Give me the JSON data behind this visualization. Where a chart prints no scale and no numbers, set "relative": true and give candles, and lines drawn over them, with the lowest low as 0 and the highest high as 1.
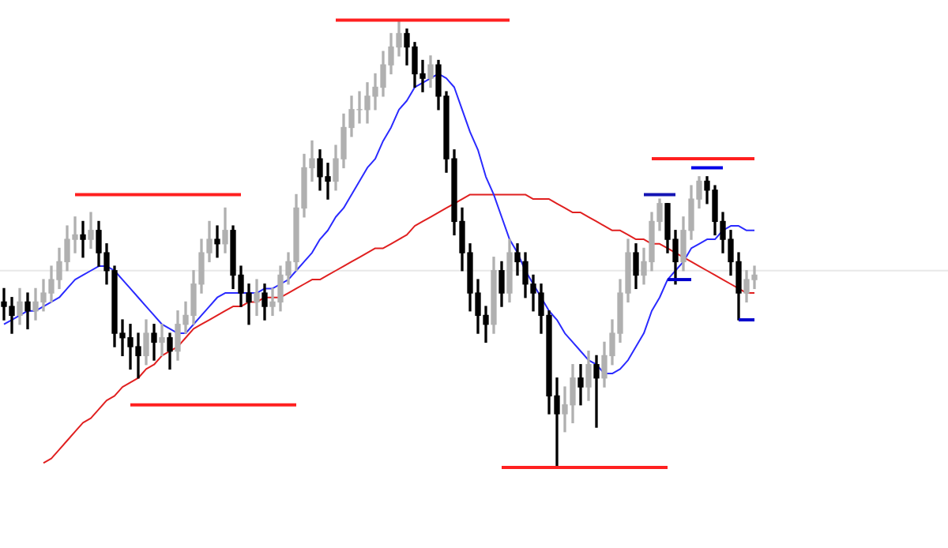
{
  "chart_data": {
    "type": "candlestick",
    "relative": true,
    "tick_labels": false,
    "categories": [
      null,
      null,
      null,
      null,
      null,
      null,
      null,
      null,
      null,
      null,
      null,
      null,
      null,
      null,
      null,
      null,
      null,
      null,
      null,
      null,
      null,
      null,
      null,
      null,
      null,
      null,
      null,
      null,
      null,
      null,
      null,
      null,
      null,
      null,
      null,
      null,
      null,
      null,
      null,
      null,
      null,
      null,
      null,
      null,
      null,
      null,
      null,
      null,
      null,
      null,
      null,
      null,
      null,
      null,
      null,
      null,
      null,
      null,
      null,
      null,
      null,
      null,
      null,
      null,
      null,
      null,
      null,
      null,
      null,
      null,
      null,
      null,
      null,
      null,
      null,
      null,
      null,
      null,
      null,
      null,
      null,
      null,
      null,
      null,
      null,
      null,
      null,
      null,
      null,
      null,
      null,
      null,
      null,
      null,
      null,
      null
    ],
    "ohlc": [
      [
        0.37,
        0.4,
        0.33,
        0.36
      ],
      [
        0.36,
        0.38,
        0.3,
        0.34
      ],
      [
        0.34,
        0.4,
        0.32,
        0.37
      ],
      [
        0.37,
        0.39,
        0.31,
        0.35
      ],
      [
        0.35,
        0.4,
        0.33,
        0.37
      ],
      [
        0.37,
        0.42,
        0.35,
        0.39
      ],
      [
        0.39,
        0.45,
        0.37,
        0.42
      ],
      [
        0.42,
        0.49,
        0.4,
        0.46
      ],
      [
        0.46,
        0.54,
        0.44,
        0.51
      ],
      [
        0.51,
        0.56,
        0.48,
        0.52
      ],
      [
        0.52,
        0.55,
        0.47,
        0.51
      ],
      [
        0.51,
        0.57,
        0.49,
        0.53
      ],
      [
        0.53,
        0.55,
        0.45,
        0.48
      ],
      [
        0.48,
        0.5,
        0.41,
        0.44
      ],
      [
        0.44,
        0.45,
        0.27,
        0.3
      ],
      [
        0.3,
        0.33,
        0.25,
        0.29
      ],
      [
        0.29,
        0.32,
        0.22,
        0.27
      ],
      [
        0.27,
        0.3,
        0.2,
        0.25
      ],
      [
        0.25,
        0.33,
        0.23,
        0.3
      ],
      [
        0.3,
        0.32,
        0.24,
        0.28
      ],
      [
        0.28,
        0.32,
        0.25,
        0.29
      ],
      [
        0.29,
        0.3,
        0.22,
        0.26
      ],
      [
        0.26,
        0.35,
        0.24,
        0.32
      ],
      [
        0.32,
        0.37,
        0.3,
        0.34
      ],
      [
        0.34,
        0.44,
        0.32,
        0.41
      ],
      [
        0.41,
        0.51,
        0.39,
        0.48
      ],
      [
        0.48,
        0.55,
        0.46,
        0.51
      ],
      [
        0.51,
        0.54,
        0.47,
        0.5
      ],
      [
        0.5,
        0.58,
        0.48,
        0.53
      ],
      [
        0.53,
        0.54,
        0.4,
        0.43
      ],
      [
        0.43,
        0.45,
        0.36,
        0.39
      ],
      [
        0.39,
        0.41,
        0.32,
        0.37
      ],
      [
        0.37,
        0.42,
        0.34,
        0.39
      ],
      [
        0.39,
        0.41,
        0.33,
        0.36
      ],
      [
        0.36,
        0.4,
        0.34,
        0.37
      ],
      [
        0.37,
        0.45,
        0.35,
        0.43
      ],
      [
        0.43,
        0.48,
        0.41,
        0.46
      ],
      [
        0.46,
        0.61,
        0.44,
        0.58
      ],
      [
        0.58,
        0.7,
        0.56,
        0.67
      ],
      [
        0.67,
        0.73,
        0.64,
        0.69
      ],
      [
        0.69,
        0.71,
        0.62,
        0.65
      ],
      [
        0.65,
        0.68,
        0.6,
        0.64
      ],
      [
        0.64,
        0.72,
        0.62,
        0.69
      ],
      [
        0.69,
        0.79,
        0.67,
        0.76
      ],
      [
        0.76,
        0.83,
        0.74,
        0.8
      ],
      [
        0.8,
        0.84,
        0.77,
        0.8
      ],
      [
        0.8,
        0.86,
        0.77,
        0.83
      ],
      [
        0.83,
        0.88,
        0.8,
        0.85
      ],
      [
        0.85,
        0.93,
        0.83,
        0.9
      ],
      [
        0.9,
        0.97,
        0.88,
        0.94
      ],
      [
        0.94,
        1,
        0.92,
        0.97
      ],
      [
        0.97,
        0.98,
        0.9,
        0.94
      ],
      [
        0.94,
        0.95,
        0.85,
        0.88
      ],
      [
        0.88,
        0.91,
        0.84,
        0.87
      ],
      [
        0.87,
        0.92,
        0.85,
        0.9
      ],
      [
        0.9,
        0.91,
        0.8,
        0.83
      ],
      [
        0.83,
        0.84,
        0.66,
        0.69
      ],
      [
        0.69,
        0.71,
        0.52,
        0.55
      ],
      [
        0.55,
        0.58,
        0.44,
        0.48
      ],
      [
        0.48,
        0.5,
        0.35,
        0.39
      ],
      [
        0.39,
        0.42,
        0.3,
        0.34
      ],
      [
        0.34,
        0.36,
        0.28,
        0.32
      ],
      [
        0.32,
        0.47,
        0.3,
        0.44
      ],
      [
        0.44,
        0.46,
        0.36,
        0.39
      ],
      [
        0.39,
        0.51,
        0.37,
        0.48
      ],
      [
        0.48,
        0.5,
        0.43,
        0.46
      ],
      [
        0.46,
        0.48,
        0.38,
        0.41
      ],
      [
        0.41,
        0.43,
        0.35,
        0.39
      ],
      [
        0.39,
        0.41,
        0.3,
        0.34
      ],
      [
        0.34,
        0.35,
        0.12,
        0.16
      ],
      [
        0.16,
        0.2,
        0,
        0.12
      ],
      [
        0.12,
        0.18,
        0.08,
        0.14
      ],
      [
        0.14,
        0.23,
        0.1,
        0.2
      ],
      [
        0.2,
        0.23,
        0.14,
        0.18
      ],
      [
        0.18,
        0.26,
        0.15,
        0.23
      ],
      [
        0.23,
        0.25,
        0.09,
        0.2
      ],
      [
        0.2,
        0.28,
        0.18,
        0.25
      ],
      [
        0.25,
        0.33,
        0.23,
        0.3
      ],
      [
        0.3,
        0.42,
        0.28,
        0.39
      ],
      [
        0.39,
        0.51,
        0.37,
        0.48
      ],
      [
        0.48,
        0.5,
        0.4,
        0.43
      ],
      [
        0.43,
        0.49,
        0.41,
        0.46
      ],
      [
        0.46,
        0.57,
        0.44,
        0.55
      ],
      [
        0.55,
        0.6,
        0.53,
        0.59
      ],
      [
        0.59,
        0.59,
        0.48,
        0.51
      ],
      [
        0.51,
        0.53,
        0.41,
        0.46
      ],
      [
        0.46,
        0.56,
        0.44,
        0.53
      ],
      [
        0.53,
        0.63,
        0.51,
        0.6
      ],
      [
        0.6,
        0.65,
        0.58,
        0.64
      ],
      [
        0.64,
        0.65,
        0.59,
        0.62
      ],
      [
        0.62,
        0.63,
        0.52,
        0.55
      ],
      [
        0.55,
        0.57,
        0.48,
        0.51
      ],
      [
        0.51,
        0.53,
        0.43,
        0.46
      ],
      [
        0.46,
        0.48,
        0.33,
        0.39
      ],
      [
        0.39,
        0.44,
        0.37,
        0.42
      ],
      [
        0.42,
        0.45,
        0.4,
        0.43
      ]
    ],
    "colors": [
      "#000000",
      "#000000",
      "#b0b0b0",
      "#000000",
      "#b0b0b0",
      "#b0b0b0",
      "#b0b0b0",
      "#b0b0b0",
      "#b0b0b0",
      "#b0b0b0",
      "#000000",
      "#b0b0b0",
      "#000000",
      "#000000",
      "#000000",
      "#000000",
      "#000000",
      "#000000",
      "#b0b0b0",
      "#000000",
      "#b0b0b0",
      "#000000",
      "#b0b0b0",
      "#b0b0b0",
      "#b0b0b0",
      "#b0b0b0",
      "#b0b0b0",
      "#000000",
      "#b0b0b0",
      "#000000",
      "#000000",
      "#000000",
      "#b0b0b0",
      "#000000",
      "#b0b0b0",
      "#b0b0b0",
      "#b0b0b0",
      "#b0b0b0",
      "#b0b0b0",
      "#b0b0b0",
      "#000000",
      "#000000",
      "#b0b0b0",
      "#b0b0b0",
      "#b0b0b0",
      "#b0b0b0",
      "#b0b0b0",
      "#b0b0b0",
      "#b0b0b0",
      "#b0b0b0",
      "#b0b0b0",
      "#000000",
      "#000000",
      "#000000",
      "#b0b0b0",
      "#000000",
      "#000000",
      "#000000",
      "#000000",
      "#000000",
      "#000000",
      "#000000",
      "#b0b0b0",
      "#000000",
      "#b0b0b0",
      "#000000",
      "#000000",
      "#000000",
      "#000000",
      "#000000",
      "#000000",
      "#b0b0b0",
      "#b0b0b0",
      "#000000",
      "#b0b0b0",
      "#000000",
      "#b0b0b0",
      "#b0b0b0",
      "#b0b0b0",
      "#b0b0b0",
      "#000000",
      "#b0b0b0",
      "#b0b0b0",
      "#b0b0b0",
      "#000000",
      "#000000",
      "#b0b0b0",
      "#b0b0b0",
      "#b0b0b0",
      "#000000",
      "#000000",
      "#000000",
      "#000000",
      "#000000",
      "#b0b0b0",
      "#b0b0b0"
    ],
    "series": [
      {
        "type": "line",
        "color": "#2a2aff",
        "values": [
          0.32,
          0.33,
          0.34,
          0.35,
          0.35,
          0.36,
          0.37,
          0.38,
          0.4,
          0.42,
          0.43,
          0.44,
          0.45,
          0.45,
          0.44,
          0.42,
          0.4,
          0.38,
          0.36,
          0.34,
          0.32,
          0.31,
          0.3,
          0.3,
          0.32,
          0.34,
          0.36,
          0.38,
          0.39,
          0.39,
          0.39,
          0.39,
          0.39,
          0.4,
          0.4,
          0.41,
          0.42,
          0.44,
          0.46,
          0.48,
          0.51,
          0.53,
          0.56,
          0.58,
          0.61,
          0.64,
          0.67,
          0.69,
          0.73,
          0.76,
          0.8,
          0.82,
          0.85,
          0.86,
          0.87,
          0.88,
          0.87,
          0.85,
          0.8,
          0.75,
          0.71,
          0.65,
          0.61,
          0.56,
          0.51,
          0.48,
          0.44,
          0.41,
          0.38,
          0.35,
          0.33,
          0.3,
          0.28,
          0.26,
          0.24,
          0.23,
          0.21,
          0.21,
          0.22,
          0.24,
          0.27,
          0.3,
          0.35,
          0.38,
          0.42,
          0.44,
          0.46,
          0.49,
          0.5,
          0.51,
          0.51,
          0.53,
          0.54,
          0.54,
          0.53,
          0.53
        ]
      },
      {
        "type": "line",
        "color": "#e02020",
        "values": [
          null,
          null,
          null,
          null,
          null,
          0.01,
          0.02,
          0.04,
          0.06,
          0.08,
          0.1,
          0.11,
          0.13,
          0.15,
          0.16,
          0.18,
          0.19,
          0.2,
          0.22,
          0.23,
          0.25,
          0.26,
          0.27,
          0.29,
          0.31,
          0.32,
          0.33,
          0.34,
          0.35,
          0.36,
          0.36,
          0.37,
          0.37,
          0.38,
          0.38,
          0.38,
          0.39,
          0.4,
          0.41,
          0.42,
          0.42,
          0.43,
          0.44,
          0.45,
          0.46,
          0.47,
          0.48,
          0.49,
          0.49,
          0.5,
          0.51,
          0.52,
          0.54,
          0.55,
          0.56,
          0.57,
          0.58,
          0.59,
          0.6,
          0.61,
          0.61,
          0.61,
          0.61,
          0.61,
          0.61,
          0.61,
          0.61,
          0.6,
          0.6,
          0.6,
          0.59,
          0.58,
          0.57,
          0.57,
          0.56,
          0.55,
          0.54,
          0.53,
          0.53,
          0.52,
          0.51,
          0.51,
          0.5,
          0.5,
          0.49,
          0.48,
          0.47,
          0.46,
          0.45,
          0.44,
          0.43,
          0.42,
          0.41,
          0.4,
          0.39,
          0.39
        ]
      },
      {
        "type": "line",
        "color": "#ff2020",
        "values": [
          null,
          null,
          null,
          null,
          null,
          null,
          null,
          null,
          null,
          0.61,
          0.61,
          0.61,
          0.61,
          0.61,
          0.61,
          0.61,
          0.61,
          0.61,
          0.61,
          0.61,
          0.61,
          0.61,
          0.61,
          0.61,
          0.61,
          0.61,
          0.61,
          0.61,
          0.61,
          0.61,
          0.61,
          null,
          null,
          null,
          null,
          null,
          null,
          null,
          null,
          null,
          null,
          null,
          null,
          null,
          null,
          null,
          null,
          null,
          null,
          null,
          null,
          null,
          null,
          null,
          null,
          null,
          null,
          null,
          null,
          null,
          null,
          null,
          null,
          null,
          null,
          null,
          null,
          null,
          null,
          null,
          null,
          null,
          null,
          null,
          null,
          null,
          null,
          null,
          null,
          null,
          null,
          null,
          null,
          null,
          null,
          null,
          null,
          null,
          null,
          null,
          null,
          null,
          null,
          null,
          null,
          null
        ]
      },
      {
        "type": "line",
        "color": "#ff2020",
        "values": [
          null,
          null,
          null,
          null,
          null,
          null,
          null,
          null,
          null,
          null,
          null,
          null,
          null,
          null,
          null,
          null,
          0.14,
          0.14,
          0.14,
          0.14,
          0.14,
          0.14,
          0.14,
          0.14,
          0.14,
          0.14,
          0.14,
          0.14,
          0.14,
          0.14,
          0.14,
          0.14,
          0.14,
          0.14,
          0.14,
          0.14,
          0.14,
          0.14,
          null,
          null,
          null,
          null,
          null,
          null,
          null,
          null,
          null,
          null,
          null,
          null,
          null,
          null,
          null,
          null,
          null,
          null,
          null,
          null,
          null,
          null,
          null,
          null,
          null,
          null,
          null,
          null,
          null,
          null,
          null,
          null,
          null,
          null,
          null,
          null,
          null,
          null,
          null,
          null,
          null,
          null,
          null,
          null,
          null,
          null,
          null,
          null,
          null,
          null,
          null,
          null,
          null,
          null,
          null,
          null,
          null,
          null
        ]
      },
      {
        "type": "line",
        "color": "#ff2020",
        "values": [
          null,
          null,
          null,
          null,
          null,
          null,
          null,
          null,
          null,
          null,
          null,
          null,
          null,
          null,
          null,
          null,
          null,
          null,
          null,
          null,
          null,
          null,
          null,
          null,
          null,
          null,
          null,
          null,
          null,
          null,
          null,
          null,
          null,
          null,
          null,
          null,
          null,
          null,
          null,
          null,
          null,
          null,
          1,
          1,
          1,
          1,
          1,
          1,
          1,
          1,
          1,
          1,
          1,
          1,
          1,
          1,
          1,
          1,
          1,
          1,
          1,
          1,
          1,
          1,
          1,
          null,
          null,
          null,
          null,
          null,
          null,
          null,
          null,
          null,
          null,
          null,
          null,
          null,
          null,
          null,
          null,
          null,
          null,
          null,
          null,
          null,
          null,
          null,
          null,
          null,
          null,
          null,
          null,
          null,
          null,
          null
        ]
      },
      {
        "type": "line",
        "color": "#ff2020",
        "values": [
          null,
          null,
          null,
          null,
          null,
          null,
          null,
          null,
          null,
          null,
          null,
          null,
          null,
          null,
          null,
          null,
          null,
          null,
          null,
          null,
          null,
          null,
          null,
          null,
          null,
          null,
          null,
          null,
          null,
          null,
          null,
          null,
          null,
          null,
          null,
          null,
          null,
          null,
          null,
          null,
          null,
          null,
          null,
          null,
          null,
          null,
          null,
          null,
          null,
          null,
          null,
          null,
          null,
          null,
          null,
          null,
          null,
          null,
          null,
          null,
          null,
          null,
          null,
          0,
          0,
          0,
          0,
          0,
          0,
          0,
          0,
          0,
          0,
          0,
          0,
          0,
          0,
          0,
          0,
          0,
          0,
          0,
          0,
          0,
          0,
          null,
          null,
          null,
          null,
          null,
          null,
          null,
          null,
          null,
          null,
          null
        ]
      },
      {
        "type": "line",
        "color": "#ff2020",
        "values": [
          null,
          null,
          null,
          null,
          null,
          null,
          null,
          null,
          null,
          null,
          null,
          null,
          null,
          null,
          null,
          null,
          null,
          null,
          null,
          null,
          null,
          null,
          null,
          null,
          null,
          null,
          null,
          null,
          null,
          null,
          null,
          null,
          null,
          null,
          null,
          null,
          null,
          null,
          null,
          null,
          null,
          null,
          null,
          null,
          null,
          null,
          null,
          null,
          null,
          null,
          null,
          null,
          null,
          null,
          null,
          null,
          null,
          null,
          null,
          null,
          null,
          null,
          null,
          null,
          null,
          null,
          null,
          null,
          null,
          null,
          null,
          null,
          null,
          null,
          null,
          null,
          null,
          null,
          null,
          null,
          null,
          null,
          0.69,
          0.69,
          0.69,
          0.69,
          0.69,
          0.69,
          0.69,
          0.69,
          0.69,
          0.69,
          0.69,
          0.69,
          0.69,
          0.69
        ]
      },
      {
        "type": "line",
        "color": "#1414b4",
        "values": [
          null,
          null,
          null,
          null,
          null,
          null,
          null,
          null,
          null,
          null,
          null,
          null,
          null,
          null,
          null,
          null,
          null,
          null,
          null,
          null,
          null,
          null,
          null,
          null,
          null,
          null,
          null,
          null,
          null,
          null,
          null,
          null,
          null,
          null,
          null,
          null,
          null,
          null,
          null,
          null,
          null,
          null,
          null,
          null,
          null,
          null,
          null,
          null,
          null,
          null,
          null,
          null,
          null,
          null,
          null,
          null,
          null,
          null,
          null,
          null,
          null,
          null,
          null,
          null,
          null,
          null,
          null,
          null,
          null,
          null,
          null,
          null,
          null,
          null,
          null,
          null,
          null,
          null,
          null,
          null,
          null,
          0.61,
          0.61,
          0.61,
          0.61,
          0.61,
          null,
          null,
          null,
          null,
          null,
          null,
          null,
          null,
          null,
          null
        ]
      },
      {
        "type": "line",
        "color": "#0000cc",
        "values": [
          null,
          null,
          null,
          null,
          null,
          null,
          null,
          null,
          null,
          null,
          null,
          null,
          null,
          null,
          null,
          null,
          null,
          null,
          null,
          null,
          null,
          null,
          null,
          null,
          null,
          null,
          null,
          null,
          null,
          null,
          null,
          null,
          null,
          null,
          null,
          null,
          null,
          null,
          null,
          null,
          null,
          null,
          null,
          null,
          null,
          null,
          null,
          null,
          null,
          null,
          null,
          null,
          null,
          null,
          null,
          null,
          null,
          null,
          null,
          null,
          null,
          null,
          null,
          null,
          null,
          null,
          null,
          null,
          null,
          null,
          null,
          null,
          null,
          null,
          null,
          null,
          null,
          null,
          null,
          null,
          null,
          null,
          null,
          null,
          0.42,
          0.42,
          0.42,
          0.42,
          null,
          null,
          null,
          null,
          null,
          null,
          null,
          null
        ]
      },
      {
        "type": "line",
        "color": "#0000e8",
        "values": [
          null,
          null,
          null,
          null,
          null,
          null,
          null,
          null,
          null,
          null,
          null,
          null,
          null,
          null,
          null,
          null,
          null,
          null,
          null,
          null,
          null,
          null,
          null,
          null,
          null,
          null,
          null,
          null,
          null,
          null,
          null,
          null,
          null,
          null,
          null,
          null,
          null,
          null,
          null,
          null,
          null,
          null,
          null,
          null,
          null,
          null,
          null,
          null,
          null,
          null,
          null,
          null,
          null,
          null,
          null,
          null,
          null,
          null,
          null,
          null,
          null,
          null,
          null,
          null,
          null,
          null,
          null,
          null,
          null,
          null,
          null,
          null,
          null,
          null,
          null,
          null,
          null,
          null,
          null,
          null,
          null,
          null,
          null,
          null,
          null,
          null,
          null,
          0.67,
          0.67,
          0.67,
          0.67,
          0.67,
          null,
          null,
          null,
          null
        ]
      },
      {
        "type": "line",
        "color": "#0000cc",
        "values": [
          null,
          null,
          null,
          null,
          null,
          null,
          null,
          null,
          null,
          null,
          null,
          null,
          null,
          null,
          null,
          null,
          null,
          null,
          null,
          null,
          null,
          null,
          null,
          null,
          null,
          null,
          null,
          null,
          null,
          null,
          null,
          null,
          null,
          null,
          null,
          null,
          null,
          null,
          null,
          null,
          null,
          null,
          null,
          null,
          null,
          null,
          null,
          null,
          null,
          null,
          null,
          null,
          null,
          null,
          null,
          null,
          null,
          null,
          null,
          null,
          null,
          null,
          null,
          null,
          null,
          null,
          null,
          null,
          null,
          null,
          null,
          null,
          null,
          null,
          null,
          null,
          null,
          null,
          null,
          null,
          null,
          null,
          null,
          null,
          null,
          null,
          null,
          null,
          null,
          null,
          null,
          null,
          null,
          0.33,
          0.33,
          0.33
        ]
      }
    ],
    "ref_lines": [
      {
        "axis": "y",
        "value": 0.44,
        "color": "#e8e8e8"
      }
    ]
  }
}
